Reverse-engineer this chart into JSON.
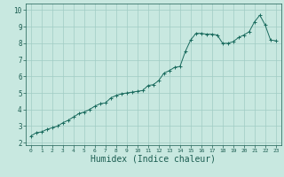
{
  "x_values": [
    0,
    0.5,
    1,
    1.5,
    2,
    2.5,
    3,
    3.5,
    4,
    4.5,
    5,
    5.5,
    6,
    6.5,
    7,
    7.5,
    8,
    8.5,
    9,
    9.5,
    10,
    10.5,
    11,
    11.5,
    12,
    12.5,
    13,
    13.5,
    14,
    14.5,
    15,
    15.5,
    16,
    16.5,
    17,
    17.5,
    18,
    18.5,
    19,
    19.5,
    20,
    20.5,
    21,
    21.5,
    22,
    22.5,
    23
  ],
  "y_values": [
    2.4,
    2.6,
    2.65,
    2.8,
    2.9,
    3.0,
    3.2,
    3.35,
    3.55,
    3.75,
    3.85,
    4.0,
    4.2,
    4.35,
    4.4,
    4.7,
    4.85,
    4.95,
    5.0,
    5.05,
    5.1,
    5.15,
    5.45,
    5.5,
    5.75,
    6.2,
    6.35,
    6.55,
    6.6,
    7.5,
    8.2,
    8.6,
    8.6,
    8.55,
    8.55,
    8.5,
    8.0,
    8.0,
    8.1,
    8.35,
    8.5,
    8.7,
    9.3,
    9.7,
    9.1,
    8.2,
    8.15
  ],
  "line_color": "#1a6b5e",
  "marker_color": "#1a6b5e",
  "bg_color": "#c8e8e0",
  "grid_color": "#a0ccc4",
  "xlabel": "Humidex (Indice chaleur)",
  "xlabel_fontsize": 7,
  "tick_label_color": "#1a5c50",
  "yticks": [
    2,
    3,
    4,
    5,
    6,
    7,
    8,
    9,
    10
  ],
  "xticks": [
    0,
    1,
    2,
    3,
    4,
    5,
    6,
    7,
    8,
    9,
    10,
    11,
    12,
    13,
    14,
    15,
    16,
    17,
    18,
    19,
    20,
    21,
    22,
    23
  ],
  "xlim": [
    -0.5,
    23.5
  ],
  "ylim": [
    1.85,
    10.4
  ]
}
